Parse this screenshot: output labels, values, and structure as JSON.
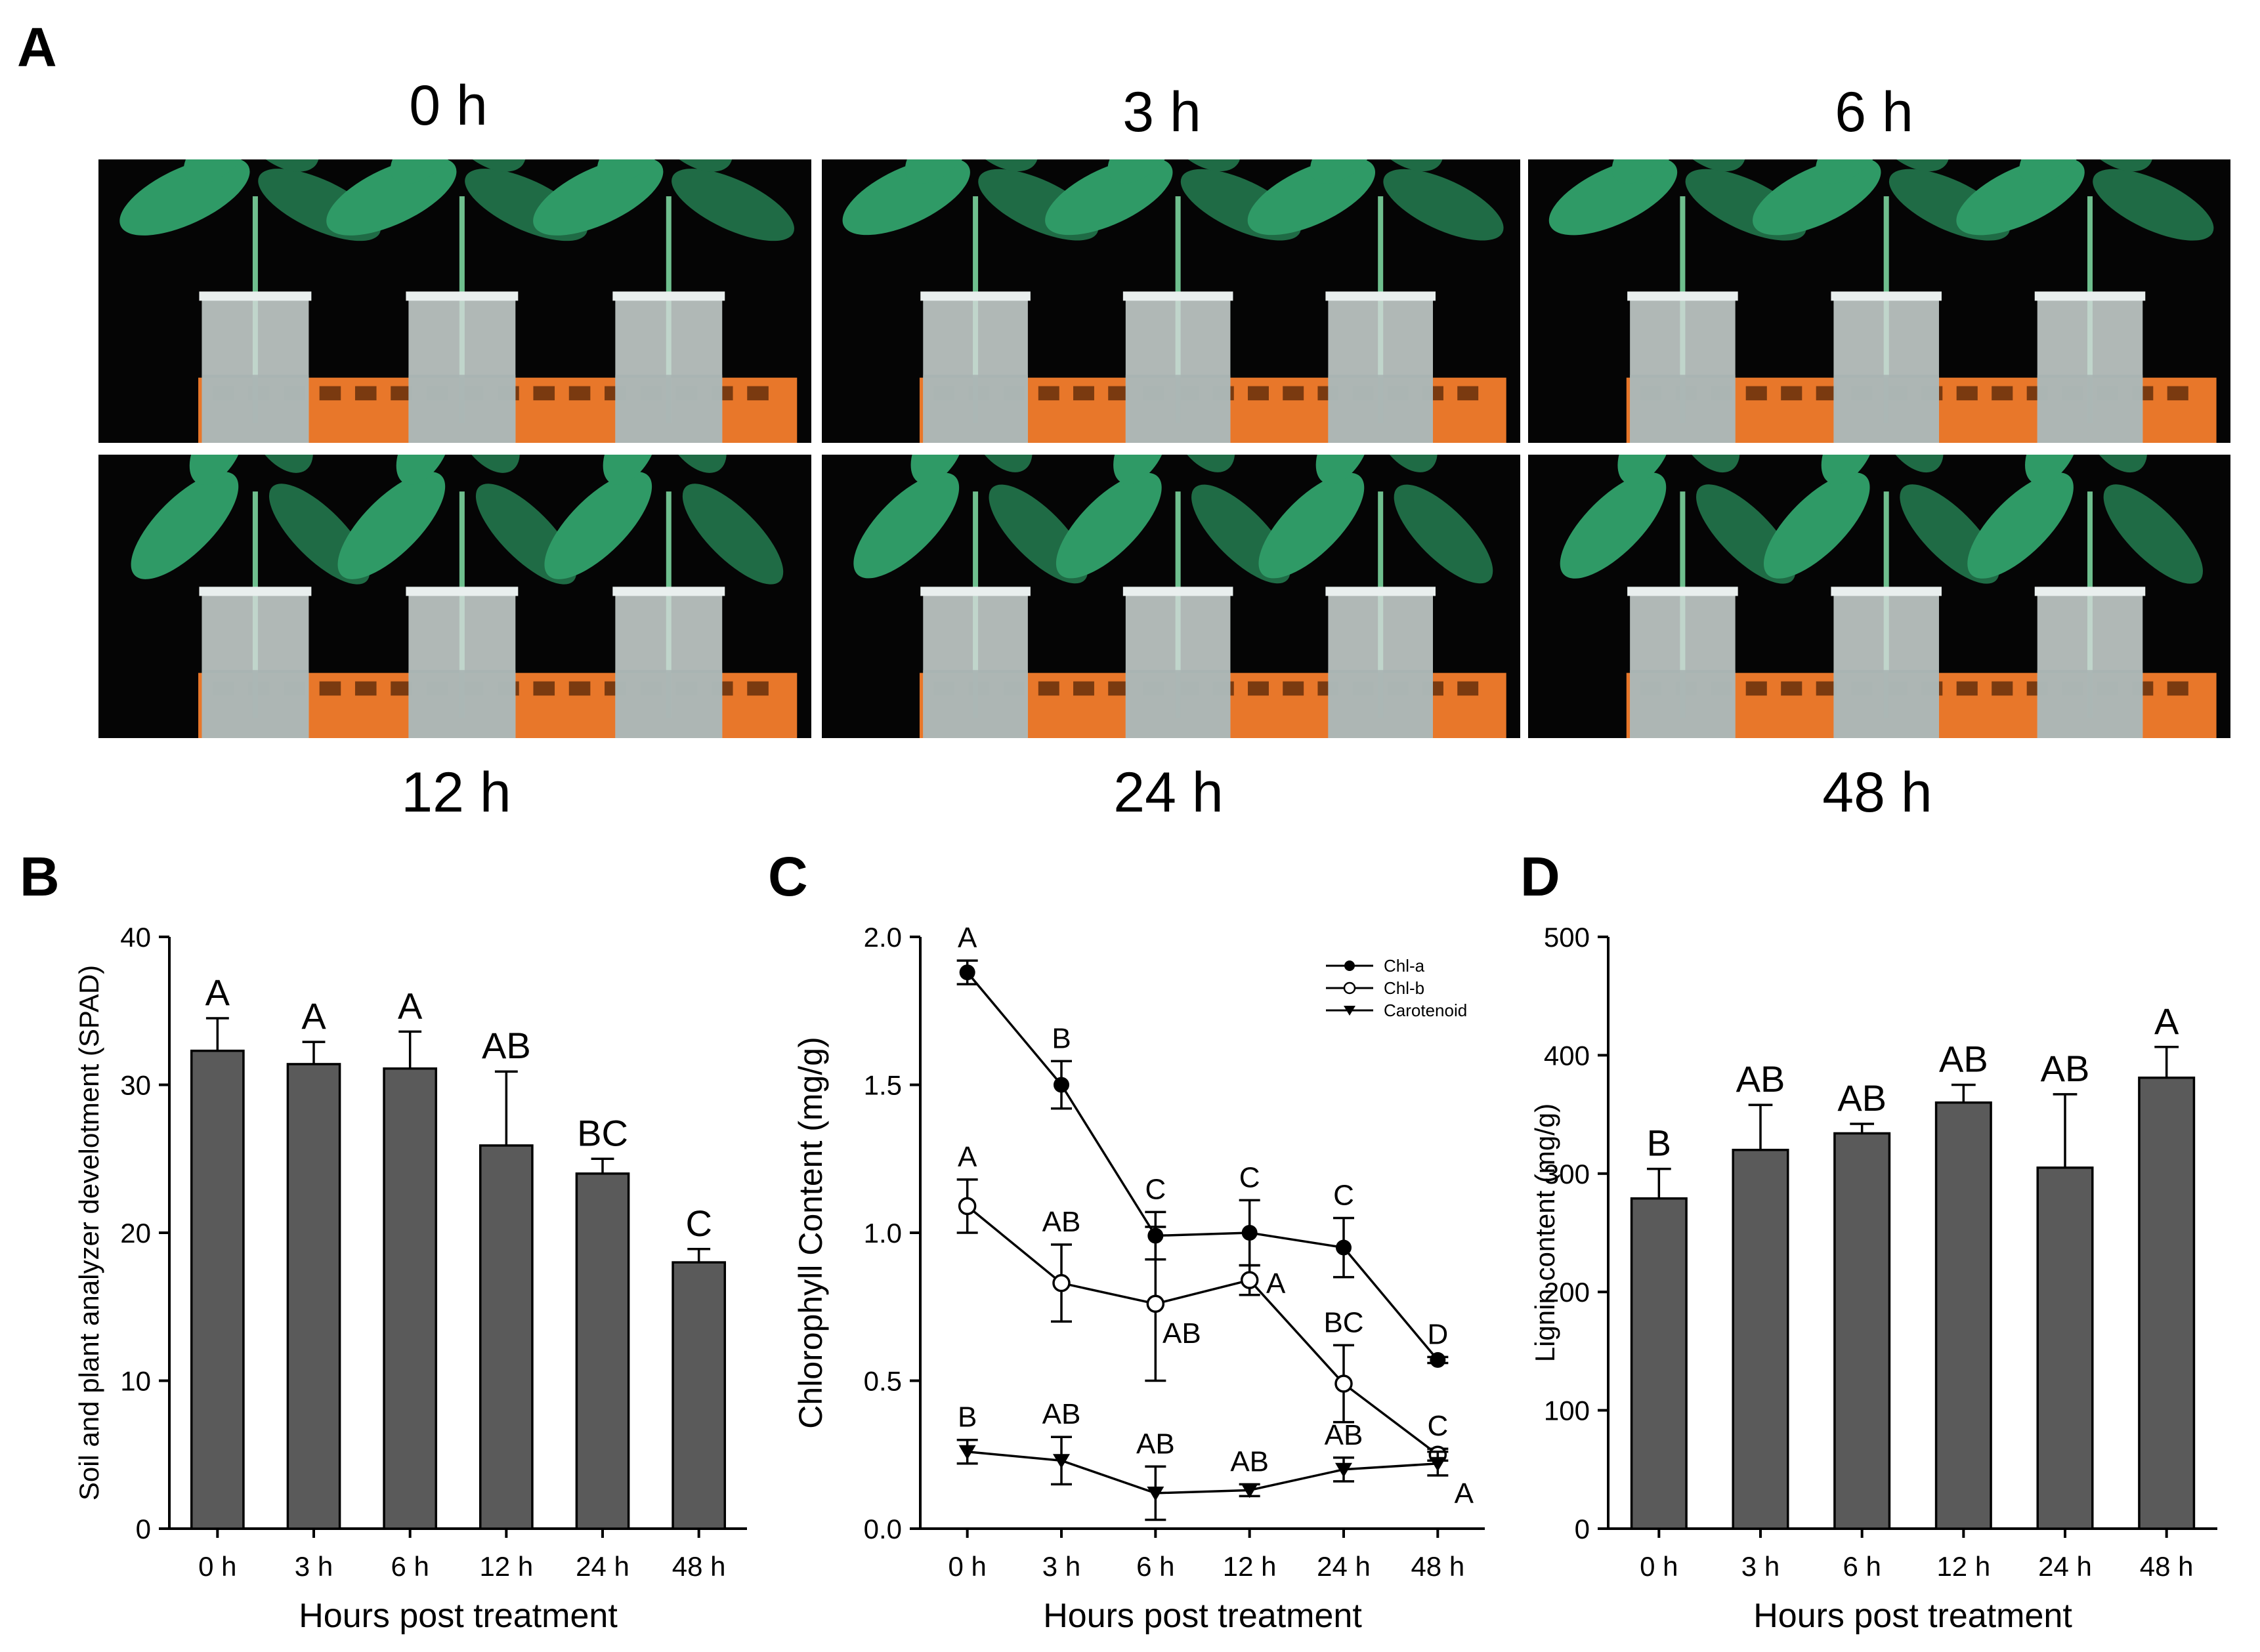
{
  "panel_labels": {
    "a": "A",
    "b": "B",
    "c": "C",
    "d": "D"
  },
  "photo_panel": {
    "time_labels": [
      "0 h",
      "3 h",
      "6 h",
      "12 h",
      "24 h",
      "48 h"
    ],
    "colors": {
      "background": "#050505",
      "leaf": "#2f9a66",
      "leaf_dark": "#1f6b45",
      "rack": "#e8772a",
      "tube": "#cfd8d6",
      "water": "#a8b4b2"
    }
  },
  "chart_data": [
    {
      "id": "B",
      "type": "bar",
      "categories": [
        "0 h",
        "3 h",
        "6 h",
        "12 h",
        "24 h",
        "48 h"
      ],
      "values": [
        32.3,
        31.4,
        31.1,
        25.9,
        24.0,
        18.0
      ],
      "errors": [
        2.2,
        1.5,
        2.5,
        5.0,
        1.0,
        0.9
      ],
      "letters": [
        "A",
        "A",
        "A",
        "AB",
        "BC",
        "C"
      ],
      "ylabel": "Soil and plant analyzer develotment (SPAD)",
      "xlabel": "Hours post treatment",
      "ylim": [
        0,
        40
      ],
      "yticks": [
        0,
        10,
        20,
        30,
        40
      ],
      "bar_color": "#5a5a5a"
    },
    {
      "id": "C",
      "type": "line",
      "categories": [
        "0 h",
        "3 h",
        "6 h",
        "12 h",
        "24 h",
        "48 h"
      ],
      "ylabel": "Chlorophyll Content (mg/g)",
      "xlabel": "Hours post treatment",
      "ylim": [
        0,
        2.0
      ],
      "yticks": [
        0.0,
        0.5,
        1.0,
        1.5,
        2.0
      ],
      "ytick_labels": [
        "0.0",
        "0.5",
        "1.0",
        "1.5",
        "2.0"
      ],
      "legend_position": "top-right",
      "series": [
        {
          "name": "Chl-a",
          "marker": "filled-circle",
          "values": [
            1.88,
            1.5,
            0.99,
            1.0,
            0.95,
            0.57
          ],
          "errors": [
            0.04,
            0.08,
            0.08,
            0.11,
            0.1,
            0.01
          ],
          "letters": [
            "A",
            "B",
            "C",
            "C",
            "C",
            "D"
          ]
        },
        {
          "name": "Chl-b",
          "marker": "open-circle",
          "values": [
            1.09,
            0.83,
            0.76,
            0.84,
            0.49,
            0.25
          ],
          "errors": [
            0.09,
            0.13,
            0.26,
            0.05,
            0.13,
            0.02
          ],
          "letters": [
            "A",
            "AB",
            "AB",
            "A",
            "BC",
            "C"
          ]
        },
        {
          "name": "Carotenoid",
          "marker": "filled-triangle-down",
          "values": [
            0.26,
            0.23,
            0.12,
            0.13,
            0.2,
            0.22
          ],
          "errors": [
            0.04,
            0.08,
            0.09,
            0.02,
            0.04,
            0.04
          ],
          "letters": [
            "B",
            "AB",
            "AB",
            "AB",
            "AB",
            "A"
          ]
        }
      ]
    },
    {
      "id": "D",
      "type": "bar",
      "categories": [
        "0 h",
        "3 h",
        "6 h",
        "12 h",
        "24 h",
        "48 h"
      ],
      "values": [
        279,
        320,
        334,
        360,
        305,
        381
      ],
      "errors": [
        25,
        38,
        8,
        15,
        62,
        26
      ],
      "letters": [
        "B",
        "AB",
        "AB",
        "AB",
        "AB",
        "A"
      ],
      "ylabel": "Lignin content (mg/g)",
      "xlabel": "Hours post treatment",
      "ylim": [
        0,
        500
      ],
      "yticks": [
        0,
        100,
        200,
        300,
        400,
        500
      ],
      "bar_color": "#5a5a5a"
    }
  ]
}
